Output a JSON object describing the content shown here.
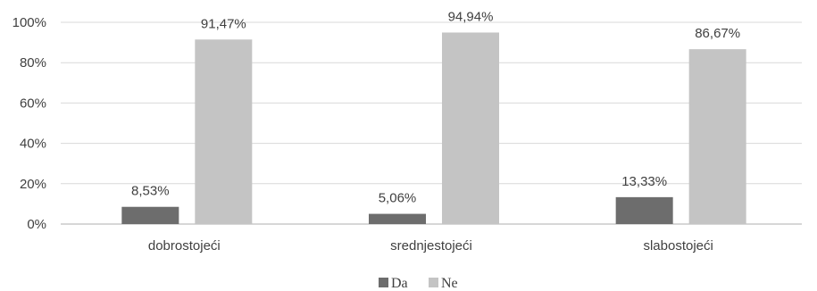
{
  "chart_data": {
    "type": "bar",
    "categories": [
      "dobrostojeći",
      "srednjestojeći",
      "slabostojeći"
    ],
    "series": [
      {
        "name": "Da",
        "values": [
          8.53,
          5.06,
          13.33
        ],
        "labels": [
          "8,53%",
          "5,06%",
          "13,33%"
        ],
        "color": "#6d6d6d"
      },
      {
        "name": "Ne",
        "values": [
          91.47,
          94.94,
          86.67
        ],
        "labels": [
          "91,47%",
          "94,94%",
          "86,67%"
        ],
        "color": "#c4c4c4"
      }
    ],
    "ylim": [
      0,
      100
    ],
    "yticks": [
      {
        "value": 0,
        "label": "0%"
      },
      {
        "value": 20,
        "label": "20%"
      },
      {
        "value": 40,
        "label": "40%"
      },
      {
        "value": 60,
        "label": "60%"
      },
      {
        "value": 80,
        "label": "80%"
      },
      {
        "value": 100,
        "label": "100%"
      }
    ],
    "grid": true,
    "legend": "bottom-center",
    "title": "",
    "xlabel": "",
    "ylabel": ""
  }
}
